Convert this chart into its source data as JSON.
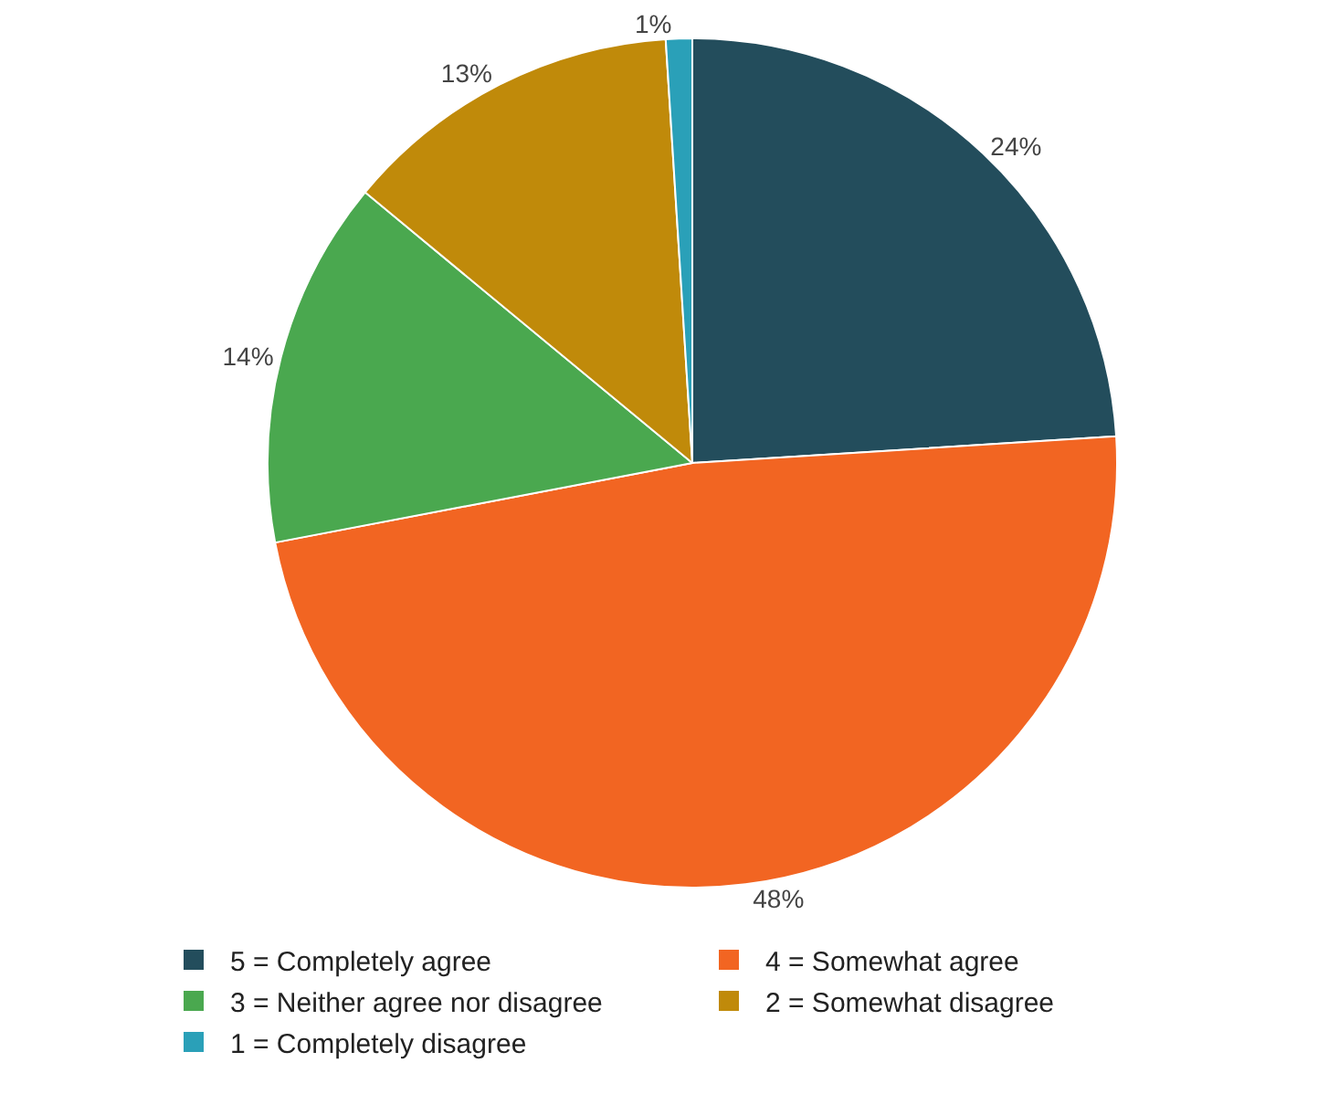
{
  "chart_data": {
    "type": "pie",
    "categories": [
      "5 = Completely agree",
      "4 = Somewhat agree",
      "3 = Neither agree nor disagree",
      "2 = Somewhat disagree",
      "1 = Completely disagree"
    ],
    "values": [
      24,
      48,
      14,
      13,
      1
    ],
    "value_labels": [
      "24%",
      "48%",
      "14%",
      "13%",
      "1%"
    ],
    "colors": [
      "#234d5c",
      "#f26522",
      "#4aa84f",
      "#c08a0a",
      "#2aa0b8"
    ],
    "legend": "bottom"
  }
}
